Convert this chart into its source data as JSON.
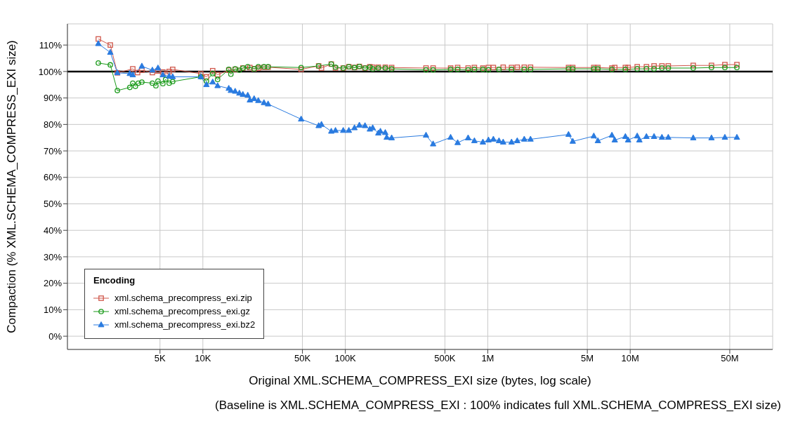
{
  "chart_data": {
    "type": "line",
    "xlabel": "Original  XML.SCHEMA_COMPRESS_EXI  size (bytes, log scale)",
    "ylabel": "Compaction (%  XML.SCHEMA_COMPRESS_EXI  size)",
    "annotations": [
      "(Baseline is  XML.SCHEMA_COMPRESS_EXI : 100% indicates full  XML.SCHEMA_COMPRESS_EXI  size)"
    ],
    "log": "x",
    "grid": true,
    "legend": "bottom left",
    "legend_title": "Encoding",
    "line_style": "solid",
    "xlim": [
      1120,
      100000000
    ],
    "ylim": [
      -5,
      118
    ],
    "xticks": [
      {
        "value": 5000,
        "label": "5K"
      },
      {
        "value": 10000,
        "label": "10K"
      },
      {
        "value": 50000,
        "label": "50K"
      },
      {
        "value": 100000,
        "label": "100K"
      },
      {
        "value": 500000,
        "label": "500K"
      },
      {
        "value": 1000000,
        "label": "1M"
      },
      {
        "value": 5000000,
        "label": "5M"
      },
      {
        "value": 10000000,
        "label": "10M"
      },
      {
        "value": 50000000,
        "label": "50M"
      }
    ],
    "yticks": [
      {
        "value": 0,
        "label": "0%"
      },
      {
        "value": 10,
        "label": "10%"
      },
      {
        "value": 20,
        "label": "20%"
      },
      {
        "value": 30,
        "label": "30%"
      },
      {
        "value": 40,
        "label": "40%"
      },
      {
        "value": 50,
        "label": "50%"
      },
      {
        "value": 60,
        "label": "60%"
      },
      {
        "value": 70,
        "label": "70%"
      },
      {
        "value": 80,
        "label": "80%"
      },
      {
        "value": 90,
        "label": "90%"
      },
      {
        "value": 100,
        "label": "100%"
      },
      {
        "value": 110,
        "label": "110%"
      }
    ],
    "ref_lines": [
      {
        "axis": "y",
        "value": 100,
        "color": "#000000"
      }
    ],
    "series": [
      {
        "name": "xml.schema_precompress_exi.zip",
        "color": "#d0584c",
        "marker": "square",
        "x": [
          1845,
          2240,
          2510,
          3220,
          3480,
          3730,
          4420,
          4840,
          5240,
          5800,
          6140,
          9670,
          10590,
          11720,
          12690,
          15200,
          16850,
          19100,
          21380,
          22900,
          24500,
          26850,
          28700,
          48950,
          65000,
          68000,
          79700,
          85300,
          96700,
          105900,
          116000,
          125500,
          137500,
          148700,
          155700,
          170500,
          190800,
          211500,
          368600,
          413400,
          548700,
          614500,
          728000,
          805700,
          924300,
          1011000,
          1095000,
          1283000,
          1469000,
          1610000,
          1804000,
          1996000,
          3690000,
          3950000,
          5550000,
          5930000,
          7440000,
          7790000,
          9250000,
          9670000,
          11200000,
          13000000,
          14700000,
          16700000,
          18500000,
          27700000,
          37200000,
          46200000,
          56100000
        ],
        "values": [
          112.3,
          110,
          99.5,
          101,
          99.6,
          100.5,
          99.6,
          100.2,
          99.8,
          100,
          100.8,
          99.2,
          98,
          100.3,
          98.8,
          100.5,
          100.8,
          101.3,
          101.5,
          101,
          101.3,
          101.6,
          101.6,
          100.8,
          102.1,
          101.3,
          102.8,
          101.3,
          101.3,
          101.8,
          101.5,
          101.9,
          101.3,
          101.8,
          101.6,
          101.6,
          101.6,
          101.5,
          101.3,
          101.3,
          101.3,
          101.5,
          101.3,
          101.5,
          101.3,
          101.5,
          101.5,
          101.6,
          101.5,
          101.6,
          101.6,
          101.6,
          101.5,
          101.5,
          101.5,
          101.5,
          101.3,
          101.5,
          101.5,
          101.5,
          101.8,
          101.8,
          102.1,
          102.1,
          102.1,
          102.3,
          102.3,
          102.6,
          102.6
        ]
      },
      {
        "name": "xml.schema_precompress_exi.gz",
        "color": "#1a9a1a",
        "marker": "circle",
        "x": [
          1845,
          2240,
          2510,
          3070,
          3220,
          3360,
          3520,
          3730,
          4420,
          4680,
          4840,
          5240,
          5480,
          5800,
          6140,
          9670,
          10590,
          11720,
          12690,
          15200,
          15730,
          16850,
          18040,
          19100,
          20660,
          22900,
          24500,
          26850,
          28700,
          48950,
          65000,
          79700,
          85300,
          96700,
          105900,
          116000,
          125500,
          137500,
          148700,
          155700,
          170500,
          190800,
          211500,
          368600,
          413400,
          548700,
          614500,
          728000,
          805700,
          924300,
          1011000,
          1199000,
          1469000,
          1804000,
          1996000,
          3690000,
          3950000,
          5550000,
          5930000,
          7440000,
          9250000,
          11200000,
          13000000,
          14700000,
          16700000,
          18500000,
          27700000,
          37200000,
          46200000,
          56100000
        ],
        "values": [
          103.2,
          102.5,
          92.8,
          94,
          95.6,
          94.4,
          95.6,
          96,
          95.6,
          94.6,
          96.4,
          95.4,
          97,
          95.6,
          96.2,
          98,
          96.4,
          99.2,
          97,
          100.8,
          99,
          101,
          100.5,
          101.3,
          101.8,
          101,
          101.8,
          101.8,
          101.8,
          101.5,
          102.1,
          102.8,
          101.6,
          101.3,
          101.8,
          101.5,
          101.9,
          101.3,
          101.6,
          101,
          101.3,
          101.3,
          101,
          100.6,
          100.6,
          100.8,
          100.8,
          100.6,
          100.8,
          100.8,
          100.6,
          100.8,
          100.8,
          100.8,
          100.8,
          101,
          101,
          101,
          101,
          100.8,
          100.8,
          101,
          101,
          101,
          101.3,
          101.3,
          101.3,
          101.5,
          101.5,
          101.5
        ]
      },
      {
        "name": "xml.schema_precompress_exi.bz2",
        "color": "#2a7be0",
        "marker": "triangle",
        "x": [
          1845,
          2240,
          2510,
          3070,
          3220,
          3730,
          4420,
          4840,
          5240,
          5800,
          6140,
          9670,
          10590,
          11720,
          12690,
          15200,
          15730,
          16850,
          18040,
          19100,
          20660,
          21380,
          22900,
          24500,
          26850,
          28700,
          48950,
          65000,
          68000,
          79700,
          85300,
          96700,
          105900,
          116000,
          125500,
          137500,
          148700,
          155700,
          170500,
          176300,
          190800,
          195300,
          211500,
          368600,
          413400,
          548700,
          614500,
          728000,
          805700,
          924300,
          1011000,
          1095000,
          1199000,
          1283000,
          1469000,
          1610000,
          1804000,
          1996000,
          3690000,
          3950000,
          5550000,
          5930000,
          7440000,
          7790000,
          9250000,
          9670000,
          11200000,
          11600000,
          13000000,
          14700000,
          16700000,
          18500000,
          27700000,
          37200000,
          46200000,
          56100000
        ],
        "values": [
          110.5,
          107.2,
          99.5,
          99.2,
          98.7,
          102,
          100.5,
          101.3,
          98.7,
          98.2,
          98,
          98,
          95,
          96,
          94.6,
          93.6,
          92.8,
          92.5,
          91.8,
          91.3,
          91,
          89.2,
          89.7,
          89,
          88.2,
          87.7,
          82,
          79.5,
          80,
          77.4,
          77.7,
          77.7,
          77.7,
          78.7,
          79.7,
          79.5,
          78.2,
          78.7,
          76.7,
          77.4,
          76.9,
          75.1,
          74.9,
          75.9,
          72.6,
          75.1,
          73.1,
          74.9,
          73.8,
          73.3,
          74.1,
          74.4,
          73.8,
          73.3,
          73.3,
          73.8,
          74.4,
          74.4,
          76.2,
          73.6,
          75.6,
          73.8,
          75.9,
          74.1,
          75.4,
          74.1,
          75.6,
          74.1,
          75.4,
          75.4,
          75.1,
          75.1,
          74.9,
          74.9,
          75.1,
          75.1
        ]
      }
    ]
  }
}
